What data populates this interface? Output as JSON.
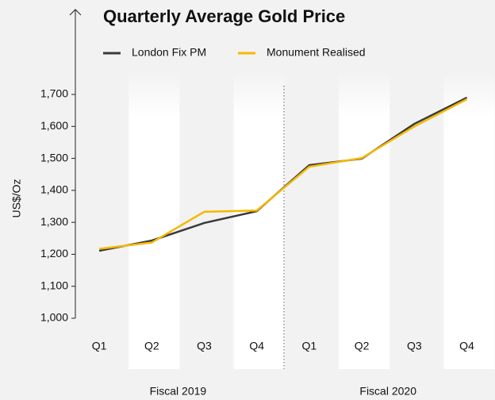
{
  "chart_data": {
    "type": "line",
    "title": "Quarterly Average Gold Price",
    "ylabel": "US$/Oz",
    "categories": [
      "Q1",
      "Q2",
      "Q3",
      "Q4",
      "Q1",
      "Q2",
      "Q3",
      "Q4"
    ],
    "groups": [
      "Fiscal 2019",
      "Fiscal 2020"
    ],
    "series": [
      {
        "name": "London Fix PM",
        "color": "#3a3a3a",
        "values": [
          1211,
          1243,
          1298,
          1335,
          1479,
          1499,
          1608,
          1690
        ]
      },
      {
        "name": "Monument Realised",
        "color": "#f5b800",
        "values": [
          1217,
          1237,
          1333,
          1337,
          1474,
          1501,
          1600,
          1685
        ]
      }
    ],
    "ylim": [
      1000,
      1700
    ],
    "yticks": [
      {
        "value": 1000,
        "label": "1,000"
      },
      {
        "value": 1100,
        "label": "1,100"
      },
      {
        "value": 1200,
        "label": "1,200"
      },
      {
        "value": 1300,
        "label": "1,300"
      },
      {
        "value": 1400,
        "label": "1,400"
      },
      {
        "value": 1500,
        "label": "1,500"
      },
      {
        "value": 1600,
        "label": "1,600"
      },
      {
        "value": 1700,
        "label": "1,700"
      }
    ],
    "legend": "top"
  }
}
